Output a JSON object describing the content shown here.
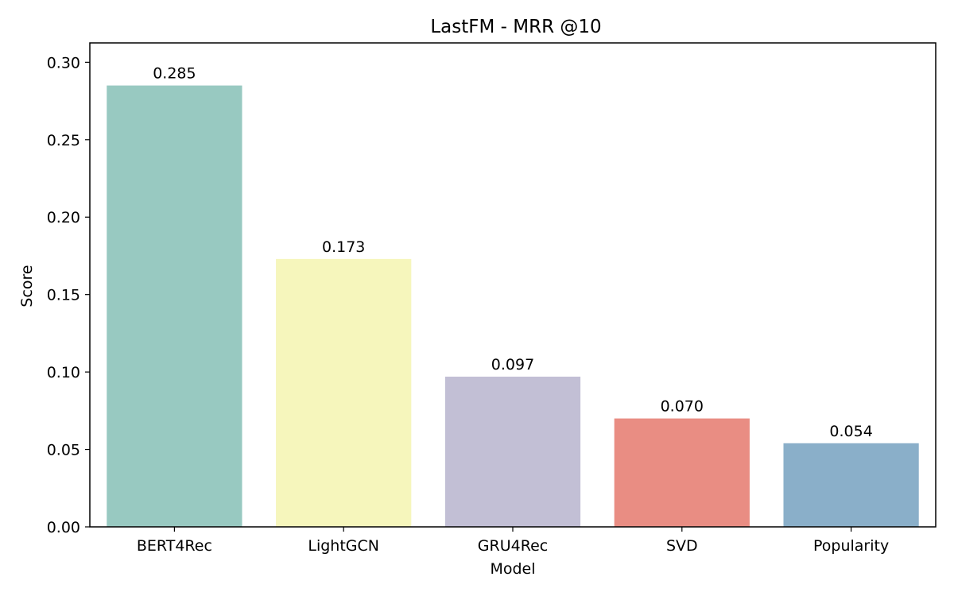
{
  "chart_data": {
    "type": "bar",
    "title": "LastFM - MRR @10",
    "xlabel": "Model",
    "ylabel": "Score",
    "categories": [
      "BERT4Rec",
      "LightGCN",
      "GRU4Rec",
      "SVD",
      "Popularity"
    ],
    "values": [
      0.285,
      0.173,
      0.097,
      0.07,
      0.054
    ],
    "value_labels": [
      "0.285",
      "0.173",
      "0.097",
      "0.070",
      "0.054"
    ],
    "colors": [
      "#98c9c1",
      "#f6f6bc",
      "#c2bfd5",
      "#e98d83",
      "#8aafc9"
    ],
    "ylim": [
      0,
      0.3125
    ],
    "yticks": [
      0.0,
      0.05,
      0.1,
      0.15,
      0.2,
      0.25,
      0.3
    ],
    "ytick_labels": [
      "0.00",
      "0.05",
      "0.10",
      "0.15",
      "0.20",
      "0.25",
      "0.30"
    ],
    "grid": false,
    "legend": "none"
  }
}
